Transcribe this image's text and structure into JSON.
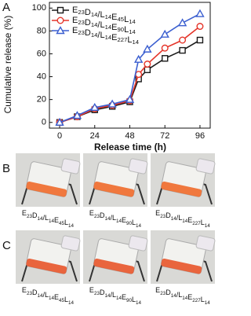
{
  "chart_data": {
    "type": "line",
    "panel_label": "A",
    "x_label": "Release time (h)",
    "y_label": "Cumulative release (%)",
    "x": [
      0,
      12,
      24,
      36,
      48,
      54,
      60,
      72,
      84,
      96
    ],
    "series": [
      {
        "name": "E23D14/L14E45L14",
        "color": "#1a1a1a",
        "marker": "square",
        "values": [
          0,
          5,
          11,
          14,
          18,
          38,
          46,
          56,
          63,
          72
        ]
      },
      {
        "name": "E23D14/L14E90L14",
        "color": "#e5352a",
        "marker": "circle",
        "values": [
          0,
          5,
          12,
          15,
          19,
          42,
          51,
          65,
          72,
          84
        ]
      },
      {
        "name": "E23D14/L14E227L14",
        "color": "#3b5fd0",
        "marker": "triangle",
        "values": [
          0,
          6,
          13,
          16,
          20,
          55,
          64,
          77,
          87,
          95
        ]
      }
    ],
    "xlim": [
      -7,
      103
    ],
    "xticks": [
      0,
      24,
      48,
      72,
      96
    ],
    "ylim": [
      -5,
      105
    ],
    "yticks": [
      0,
      20,
      40,
      60,
      80,
      100
    ],
    "legend": "upper-left"
  },
  "figure": {
    "rows": [
      {
        "label": "B",
        "captions": [
          "E23D14/L14E45L14",
          "E23D14/L14E90L14",
          "E23D14/L14E227L14"
        ]
      },
      {
        "label": "C",
        "captions": [
          "E23D14/L14E45L14",
          "E23D14/L14E90L14",
          "E23D14/L14E227L14"
        ]
      }
    ]
  }
}
